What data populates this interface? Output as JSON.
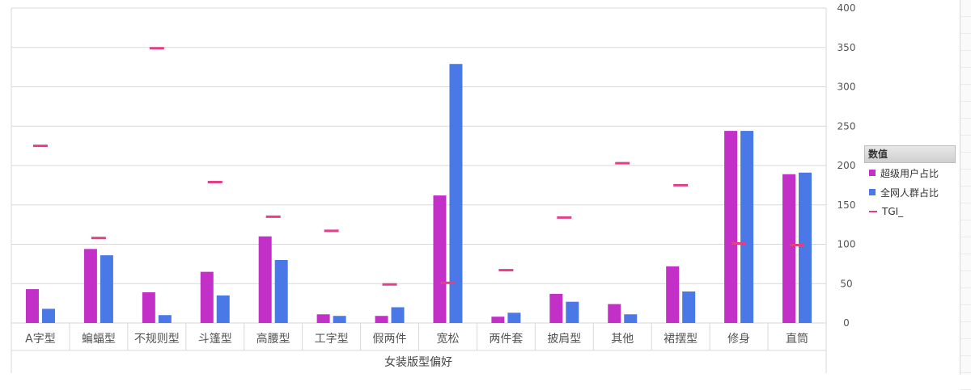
{
  "chart_data": {
    "type": "bar",
    "xlabel": "女装版型偏好",
    "ylim": [
      0,
      400
    ],
    "yticks": [
      0,
      50,
      100,
      150,
      200,
      250,
      300,
      350,
      400
    ],
    "categories": [
      "A字型",
      "蝙蝠型",
      "不规则型",
      "斗篷型",
      "高腰型",
      "工字型",
      "假两件",
      "宽松",
      "两件套",
      "披肩型",
      "其他",
      "裙摆型",
      "修身",
      "直筒"
    ],
    "series": [
      {
        "name": "超级用户占比",
        "kind": "bar",
        "color": "#c330c8",
        "values": [
          43,
          94,
          39,
          65,
          110,
          11,
          9,
          162,
          8,
          37,
          24,
          72,
          244,
          189
        ]
      },
      {
        "name": "全网人群占比",
        "kind": "bar",
        "color": "#4a78e6",
        "values": [
          18,
          86,
          10,
          35,
          80,
          9,
          20,
          329,
          13,
          27,
          11,
          40,
          244,
          191
        ]
      },
      {
        "name": "TGI_",
        "kind": "marker",
        "color": "#e23f87",
        "values": [
          225,
          108,
          349,
          179,
          135,
          117,
          49,
          51,
          67,
          134,
          203,
          175,
          101,
          99
        ]
      }
    ],
    "legend": {
      "title": "数值",
      "position": "right"
    },
    "grid": true
  }
}
